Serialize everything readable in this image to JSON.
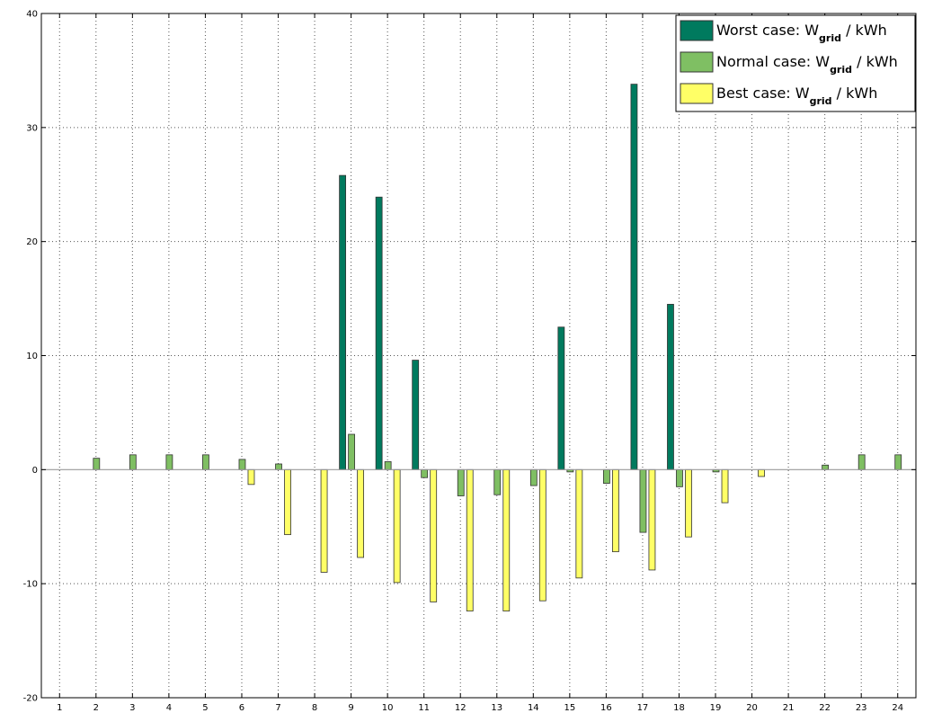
{
  "chart_data": {
    "type": "bar",
    "grid": true,
    "legend_position": "top-right",
    "x": [
      1,
      2,
      3,
      4,
      5,
      6,
      7,
      8,
      9,
      10,
      11,
      12,
      13,
      14,
      15,
      16,
      17,
      18,
      19,
      20,
      21,
      22,
      23,
      24
    ],
    "ylim": [
      -20,
      40
    ],
    "yticks": [
      -20,
      -10,
      0,
      10,
      20,
      30,
      40
    ],
    "colors": {
      "worst": "#007a5e",
      "normal": "#7fbf63",
      "best": "#ffff66",
      "grid": "#555555"
    },
    "series": [
      {
        "name": "Worst case: W",
        "subscript": "grid",
        "suffix": " / kWh",
        "color": "#007a5e",
        "values": [
          0,
          0,
          0,
          0,
          0,
          0,
          0,
          0,
          25.8,
          23.9,
          9.6,
          0,
          0,
          0,
          12.5,
          0,
          33.8,
          14.5,
          0,
          0,
          0,
          0,
          0,
          0
        ]
      },
      {
        "name": "Normal case: W",
        "subscript": "grid",
        "suffix": " / kWh",
        "color": "#7fbf63",
        "values": [
          0,
          1.0,
          1.3,
          1.3,
          1.3,
          0.9,
          0.5,
          0,
          3.1,
          0.7,
          -0.7,
          -2.3,
          -2.2,
          -1.4,
          -0.2,
          -1.2,
          -5.5,
          -1.5,
          -0.2,
          0,
          0,
          0.4,
          1.3,
          1.3
        ]
      },
      {
        "name": "Best case: W",
        "subscript": "grid",
        "suffix": " / kWh",
        "color": "#ffff66",
        "values": [
          0,
          0,
          0,
          0,
          0,
          -1.3,
          -5.7,
          -9.0,
          -7.7,
          -9.9,
          -11.6,
          -12.4,
          -12.4,
          -11.5,
          -9.5,
          -7.2,
          -8.8,
          -5.9,
          -2.9,
          -0.6,
          0,
          0,
          0,
          0
        ]
      }
    ]
  }
}
